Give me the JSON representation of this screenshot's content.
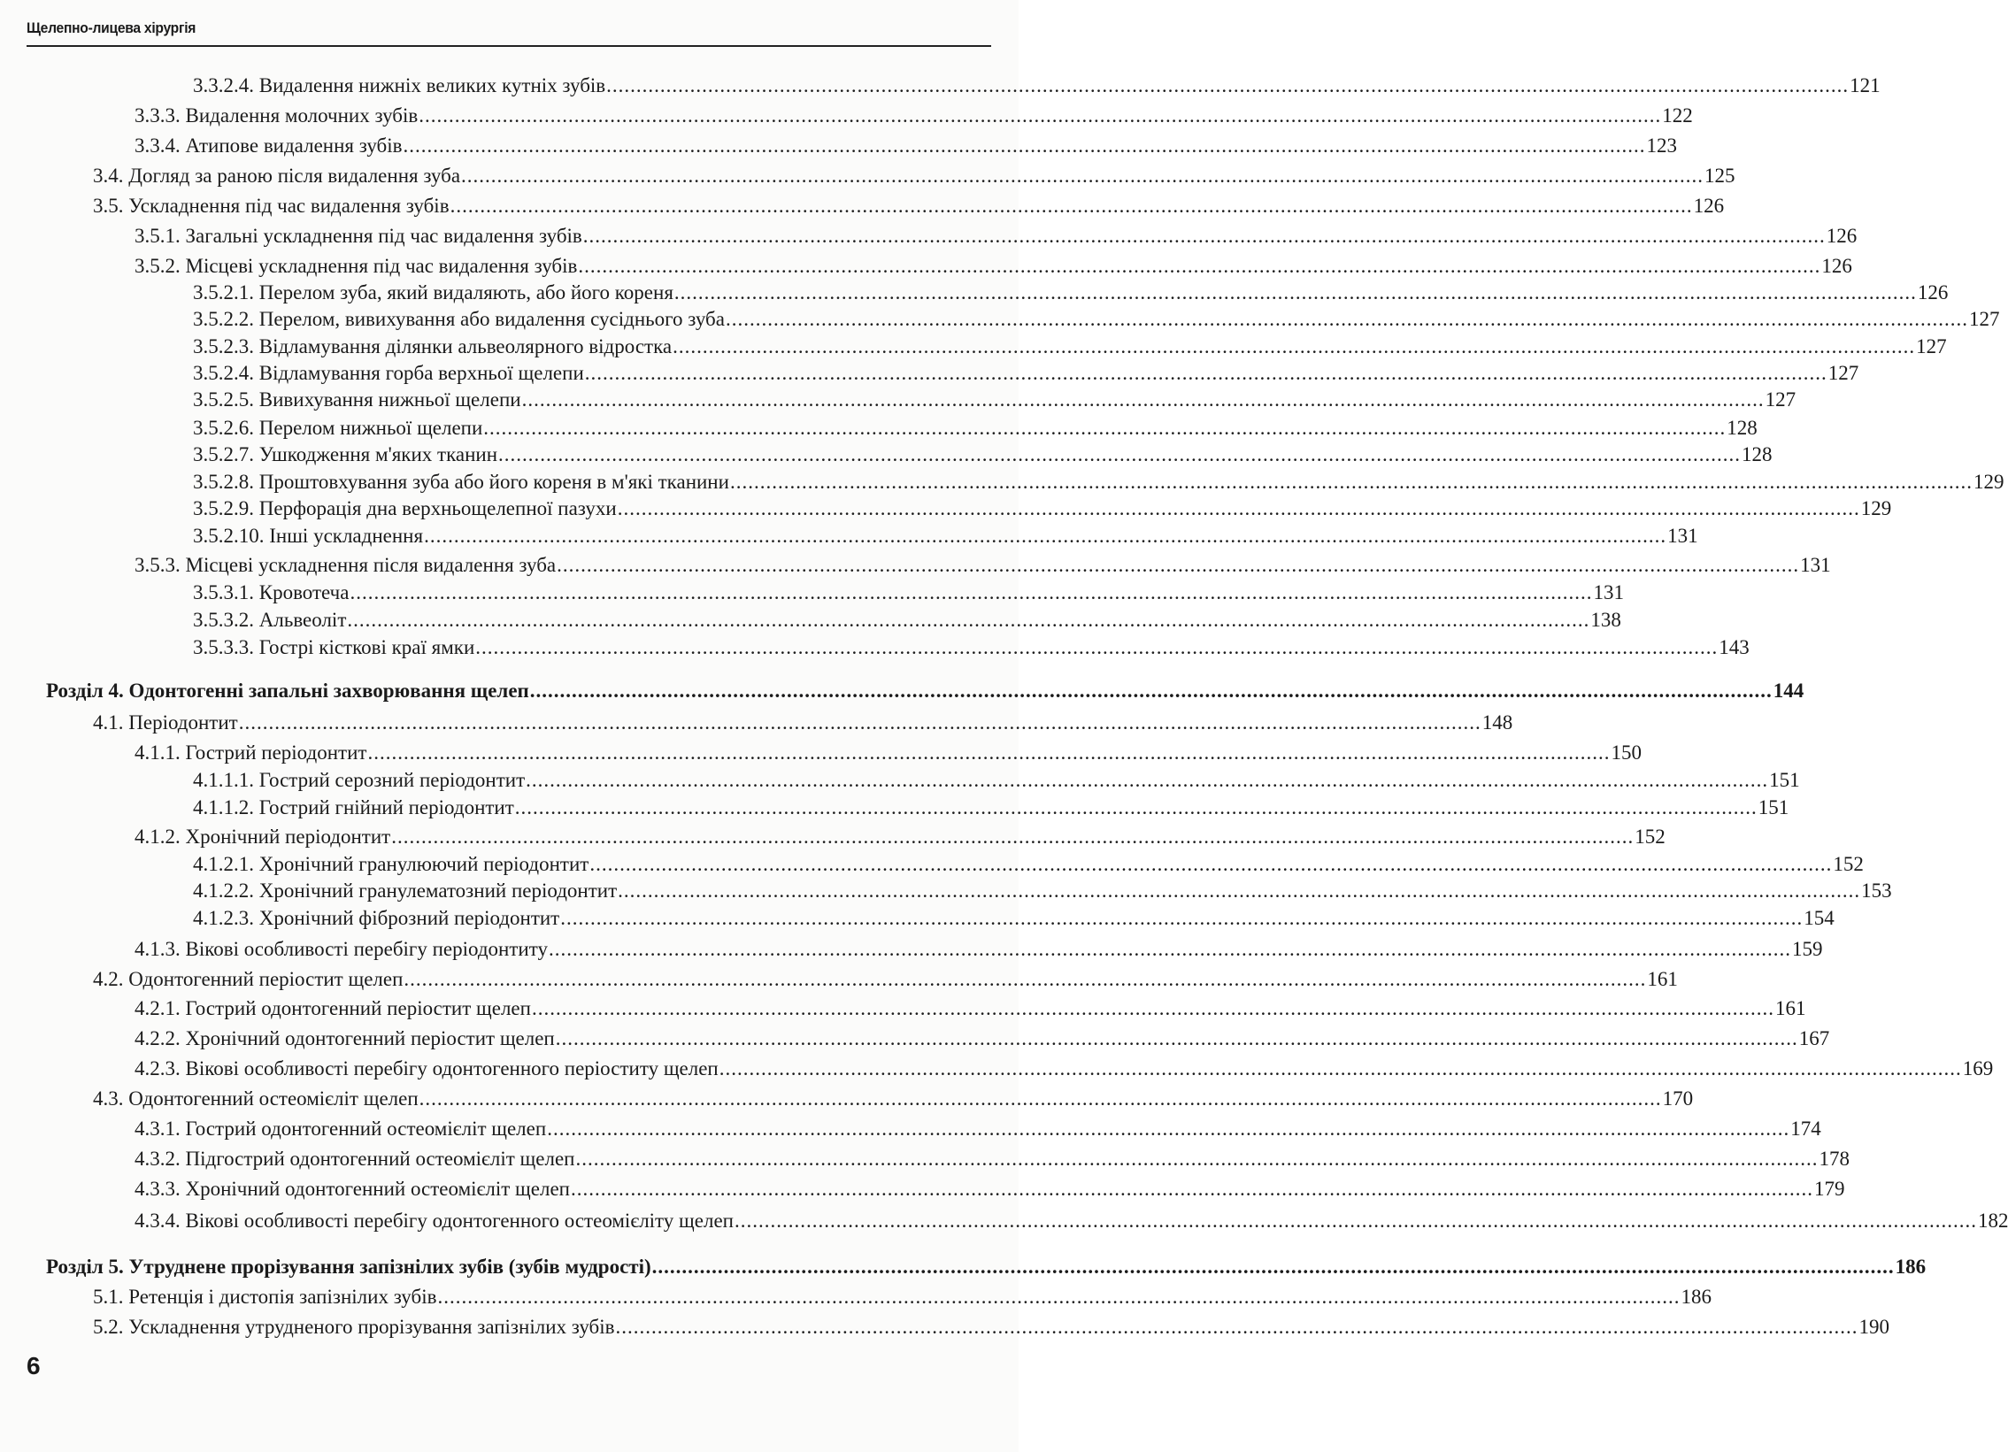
{
  "header": {
    "title": "Щелепно-лицева хірургія"
  },
  "page_number": "6",
  "toc": [
    {
      "level": 3,
      "title": "3.3.2.4. Видалення нижніх великих кутніх зубів",
      "page": "121"
    },
    {
      "level": 2,
      "title": "3.3.3. Видалення молочних зубів",
      "page": "122"
    },
    {
      "level": 2,
      "title": "3.3.4. Атипове видалення зубів",
      "page": "123"
    },
    {
      "level": 1,
      "title": "3.4. Догляд за раною після видалення зуба",
      "page": "125"
    },
    {
      "level": 1,
      "title": "3.5. Ускладнення під час видалення зубів",
      "page": "126"
    },
    {
      "level": 2,
      "title": "3.5.1. Загальні ускладнення під час видалення зубів",
      "page": "126"
    },
    {
      "level": 2,
      "title": "3.5.2. Місцеві ускладнення під час видалення зубів",
      "page": "126"
    },
    {
      "level": 3,
      "title": "3.5.2.1. Перелом зуба, який видаляють, або його кореня",
      "page": "126"
    },
    {
      "level": 3,
      "title": "3.5.2.2. Перелом, вивихування або видалення сусіднього зуба",
      "page": "127"
    },
    {
      "level": 3,
      "title": "3.5.2.3. Відламування ділянки альвеолярного відростка",
      "page": "127"
    },
    {
      "level": 3,
      "title": "3.5.2.4. Відламування горба верхньої щелепи",
      "page": "127"
    },
    {
      "level": 3,
      "title": "3.5.2.5. Вивихування нижньої щелепи",
      "page": "127"
    },
    {
      "level": 3,
      "title": "3.5.2.6. Перелом нижньої щелепи",
      "page": "128"
    },
    {
      "level": 3,
      "title": "3.5.2.7. Ушкодження м'яких тканин",
      "page": "128"
    },
    {
      "level": 3,
      "title": "3.5.2.8. Проштовхування зуба або його кореня в м'які тканини",
      "page": "129"
    },
    {
      "level": 3,
      "title": "3.5.2.9. Перфорація дна верхньощелепної пазухи",
      "page": "129"
    },
    {
      "level": 3,
      "title": "3.5.2.10. Інші ускладнення",
      "page": "131"
    },
    {
      "level": 2,
      "title": "3.5.3. Місцеві ускладнення після видалення зуба",
      "page": "131"
    },
    {
      "level": 3,
      "title": "3.5.3.1. Кровотеча",
      "page": "131"
    },
    {
      "level": 3,
      "title": "3.5.3.2. Альвеоліт",
      "page": "138"
    },
    {
      "level": 3,
      "title": "3.5.3.3. Гострі кісткові краї ямки",
      "page": "143"
    },
    {
      "level": 0,
      "title": "Розділ 4. Одонтогенні запальні захворювання щелеп",
      "page": "144"
    },
    {
      "level": 1,
      "title": "4.1. Періодонтит",
      "page": "148"
    },
    {
      "level": 2,
      "title": "4.1.1. Гострий періодонтит",
      "page": "150"
    },
    {
      "level": 3,
      "title": "4.1.1.1. Гострий серозний періодонтит",
      "page": "151"
    },
    {
      "level": 3,
      "title": "4.1.1.2. Гострий гнійний періодонтит",
      "page": "151"
    },
    {
      "level": 2,
      "title": "4.1.2. Хронічний періодонтит",
      "page": "152"
    },
    {
      "level": 3,
      "title": "4.1.2.1. Хронічний гранулюючий періодонтит",
      "page": "152"
    },
    {
      "level": 3,
      "title": "4.1.2.2. Хронічний гранулематозний періодонтит",
      "page": "153"
    },
    {
      "level": 3,
      "title": "4.1.2.3. Хронічний фіброзний періодонтит",
      "page": "154"
    },
    {
      "level": 2,
      "title": "4.1.3. Вікові особливості перебігу періодонтиту",
      "page": "159"
    },
    {
      "level": 1,
      "title": "4.2. Одонтогенний періостит щелеп",
      "page": "161"
    },
    {
      "level": 2,
      "title": "4.2.1. Гострий одонтогенний періостит щелеп",
      "page": "161"
    },
    {
      "level": 2,
      "title": "4.2.2. Хронічний одонтогенний періостит щелеп",
      "page": "167"
    },
    {
      "level": 2,
      "title": "4.2.3. Вікові особливості перебігу одонтогенного періоститу щелеп",
      "page": "169"
    },
    {
      "level": 1,
      "title": "4.3. Одонтогенний остеомієліт щелеп",
      "page": "170"
    },
    {
      "level": 2,
      "title": "4.3.1. Гострий одонтогенний остеомієліт щелеп",
      "page": "174"
    },
    {
      "level": 2,
      "title": "4.3.2. Підгострий одонтогенний остеомієліт щелеп",
      "page": "178"
    },
    {
      "level": 2,
      "title": "4.3.3. Хронічний одонтогенний остеомієліт щелеп",
      "page": "179"
    },
    {
      "level": 2,
      "title": "4.3.4. Вікові особливості перебігу одонтогенного остеомієліту щелеп",
      "page": "182"
    },
    {
      "level": 0,
      "title": "Розділ 5. Утруднене прорізування запізнілих зубів (зубів мудрості)",
      "page": "186"
    },
    {
      "level": 1,
      "title": "5.1. Ретенція і дистопія запізнілих зубів",
      "page": "186"
    },
    {
      "level": 1,
      "title": "5.2. Ускладнення утрудненого прорізування запізнілих зубів",
      "page": "190"
    }
  ]
}
